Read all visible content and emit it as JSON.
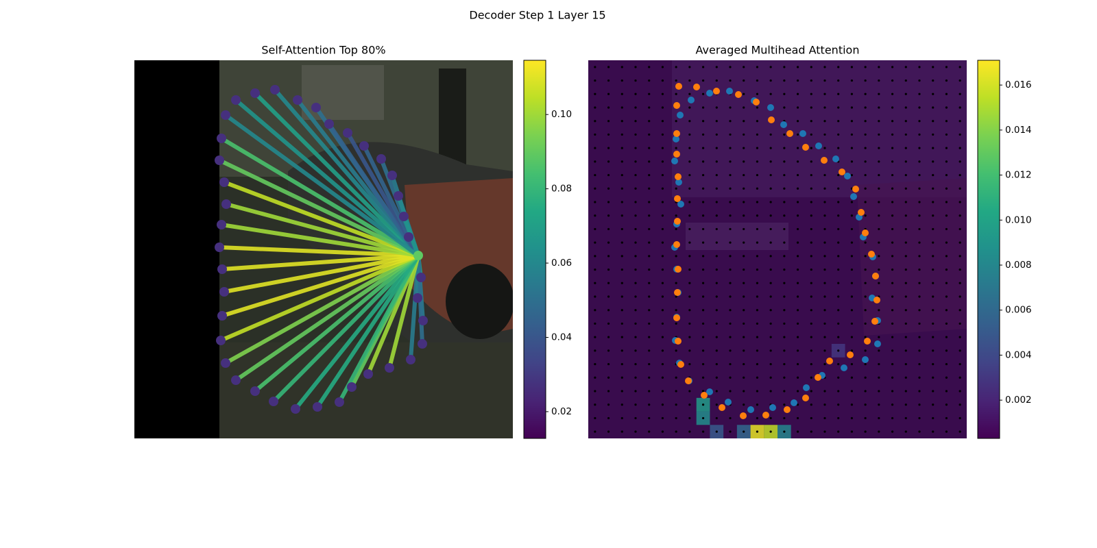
{
  "title": "Decoder Step 1 Layer 15",
  "chart_data": [
    {
      "type": "attention_lines",
      "title": "Self-Attention Top 80%",
      "cmap": "viridis",
      "xlim": [
        0,
        552
      ],
      "ylim": [
        552,
        0
      ],
      "source": {
        "x": 414,
        "y": 285
      },
      "source_color": "#5ec962",
      "point_color": "#46307e",
      "x": [
        148,
        176,
        205,
        238,
        265,
        284,
        311,
        335,
        360,
        376,
        385,
        393,
        400,
        418,
        413,
        421,
        420,
        403,
        372,
        341,
        317,
        299,
        267,
        235,
        203,
        176,
        148,
        133,
        126,
        128,
        131,
        128,
        124,
        127,
        134,
        131,
        124,
        127,
        133
      ],
      "y": [
        58,
        48,
        43,
        58,
        69,
        93,
        106,
        125,
        144,
        168,
        198,
        228,
        258,
        317,
        347,
        380,
        414,
        437,
        449,
        458,
        477,
        499,
        506,
        509,
        498,
        483,
        467,
        442,
        409,
        373,
        338,
        305,
        273,
        240,
        210,
        178,
        146,
        114,
        80
      ],
      "values": [
        0.065,
        0.07,
        0.06,
        0.055,
        0.05,
        0.045,
        0.04,
        0.045,
        0.05,
        0.055,
        0.06,
        0.065,
        null,
        0.07,
        0.06,
        0.055,
        0.05,
        0.055,
        0.1,
        0.1,
        0.09,
        0.08,
        0.075,
        0.075,
        0.08,
        0.085,
        0.09,
        0.095,
        0.105,
        0.11,
        0.11,
        0.11,
        0.11,
        0.1,
        0.1,
        0.105,
        0.09,
        0.085,
        0.06
      ],
      "clim": [
        0.0128,
        0.1146
      ],
      "cticks": [
        0.02,
        0.04,
        0.06,
        0.08,
        {
          "value": 0.1,
          "label": "0.10"
        }
      ]
    },
    {
      "type": "heatmap",
      "title": "Averaged Multihead Attention",
      "cmap": "viridis",
      "xlim": [
        0,
        552
      ],
      "ylim": [
        552,
        0
      ],
      "grid_size": [
        28,
        28
      ],
      "base_value": 0.0008,
      "cells": {
        "col": [
          12,
          13,
          8,
          8,
          14,
          11,
          9,
          18
        ],
        "row": [
          27,
          27,
          25,
          26,
          27,
          27,
          27,
          21
        ],
        "values": [
          0.0165,
          0.0155,
          0.0095,
          0.0085,
          0.008,
          0.006,
          0.005,
          0.003
        ]
      },
      "points": [
        {
          "color": "#1f77b4",
          "x": [
            150,
            177,
            206,
            242,
            266,
            285,
            313,
            336,
            361,
            378,
            387,
            395,
            401,
            415,
            419,
            414,
            422,
            422,
            404,
            373,
            341,
            318,
            300,
            269,
            237,
            204,
            177,
            147,
            133,
            127,
            129,
            131,
            129,
            126,
            129,
            135,
            132,
            126,
            128,
            134
          ],
          "y": [
            58,
            48,
            45,
            59,
            69,
            94,
            107,
            125,
            144,
            169,
            199,
            229,
            258,
            287,
            315,
            347,
            380,
            414,
            437,
            449,
            460,
            478,
            500,
            507,
            510,
            499,
            484,
            468,
            442,
            409,
            375,
            339,
            305,
            273,
            239,
            210,
            178,
            147,
            115,
            80
          ]
        },
        {
          "color": "#ff7f0e",
          "x": [
            132,
            158,
            187,
            219,
            245,
            267,
            294,
            317,
            344,
            370,
            390,
            398,
            404,
            413,
            419,
            421,
            418,
            407,
            382,
            352,
            335,
            317,
            290,
            259,
            226,
            195,
            169,
            146,
            135,
            131,
            129,
            130,
            131,
            129,
            130,
            130,
            131,
            129,
            129,
            129
          ],
          "y": [
            38,
            39,
            45,
            50,
            61,
            87,
            107,
            127,
            146,
            163,
            188,
            222,
            252,
            283,
            315,
            350,
            381,
            410,
            430,
            439,
            463,
            493,
            510,
            518,
            519,
            507,
            489,
            468,
            444,
            410,
            376,
            339,
            305,
            269,
            235,
            202,
            170,
            137,
            107,
            66
          ]
        }
      ],
      "clim": [
        0.0003,
        0.0171
      ],
      "cticks": [
        0.002,
        0.004,
        0.006,
        0.008,
        {
          "value": 0.01,
          "label": "0.010"
        },
        0.012,
        0.014,
        0.016
      ]
    }
  ]
}
